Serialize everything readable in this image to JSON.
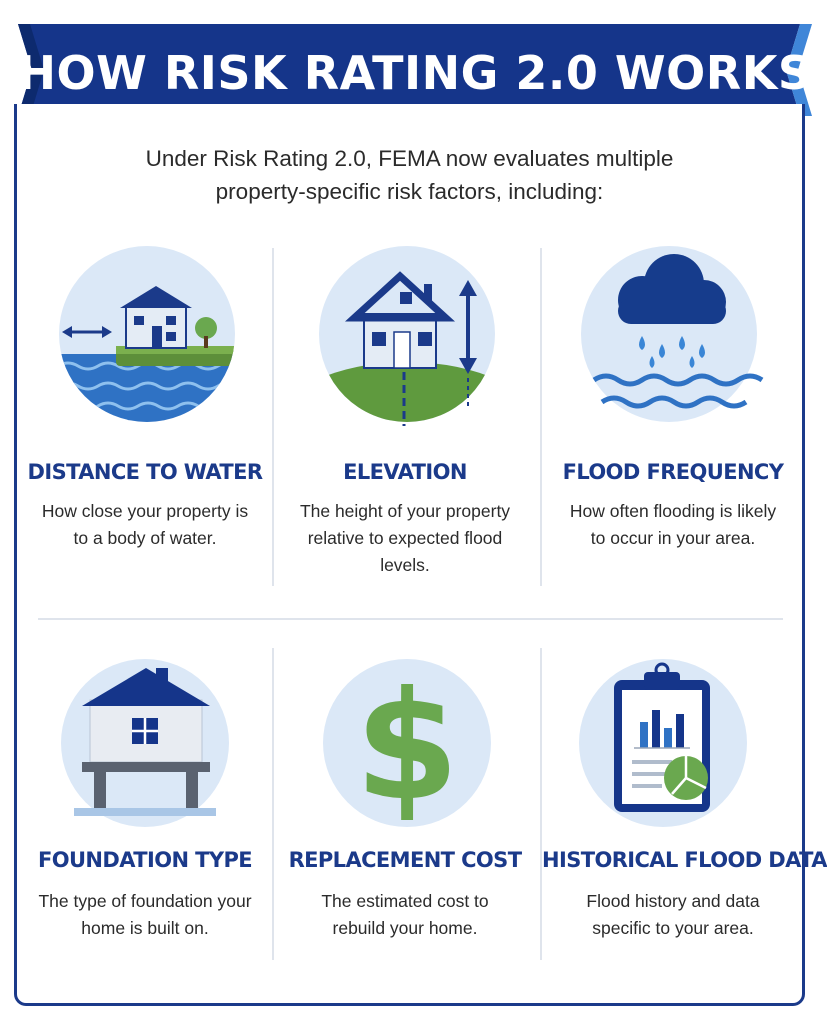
{
  "header": {
    "title": "HOW RISK RATING 2.0 WORKS"
  },
  "intro": {
    "line1": "Under Risk Rating 2.0, FEMA now evaluates multiple",
    "line2": "property-specific risk factors, including:"
  },
  "factors": [
    {
      "title": "DISTANCE TO WATER",
      "desc": "How close your property is to a body of water.",
      "icon": "house-near-water-icon"
    },
    {
      "title": "ELEVATION",
      "desc": "The height of your property relative to expected flood levels.",
      "icon": "house-elevation-icon"
    },
    {
      "title": "FLOOD FREQUENCY",
      "desc": "How often flooding is likely to occur in your area.",
      "icon": "rain-cloud-waves-icon"
    },
    {
      "title": "FOUNDATION TYPE",
      "desc": "The type of foundation your home is built on.",
      "icon": "elevated-house-foundation-icon"
    },
    {
      "title": "REPLACEMENT COST",
      "desc": "The estimated cost to rebuild your home.",
      "icon": "dollar-sign-icon"
    },
    {
      "title": "HISTORICAL FLOOD DATA",
      "desc": "Flood history and data specific to your area.",
      "icon": "clipboard-chart-icon"
    }
  ],
  "colors": {
    "navy": "#1b3a8a",
    "blue": "#2a64b8",
    "light_circle": "#dbe8f7",
    "green": "#6aa84f"
  }
}
